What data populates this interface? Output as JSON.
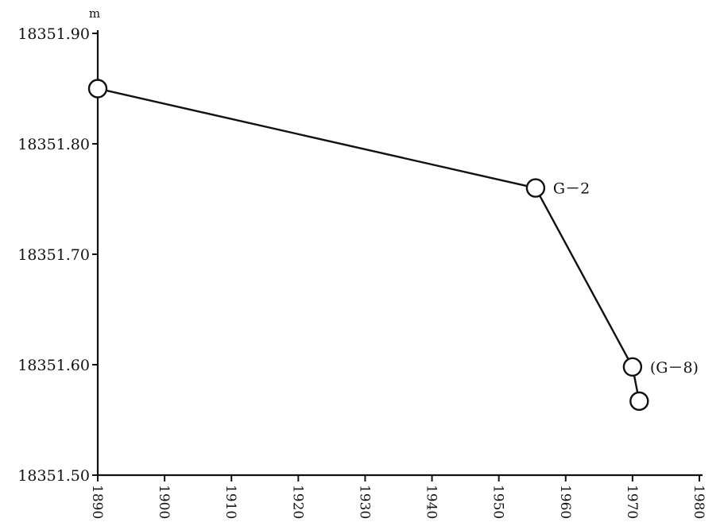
{
  "chart_data": {
    "type": "line",
    "title": "",
    "xlabel": "",
    "ylabel": "m",
    "xlim": [
      1890,
      1980
    ],
    "ylim": [
      18351.5,
      18351.9
    ],
    "x_ticks": [
      "1890",
      "1900",
      "1910",
      "1920",
      "1930",
      "1940",
      "1950",
      "1960",
      "1970",
      "1980"
    ],
    "y_ticks": [
      "18351.50",
      "18351.60",
      "18351.70",
      "18351.80",
      "18351.90"
    ],
    "grid": false,
    "legend": "none",
    "series": [
      {
        "x": [
          1890,
          1955.5,
          1970,
          1971
        ],
        "y": [
          18351.85,
          18351.76,
          18351.598,
          18351.567
        ]
      }
    ],
    "annotations": [
      {
        "text": "G－2",
        "x": 1955.5,
        "y": 18351.76
      },
      {
        "text": "(G－8)",
        "x": 1970,
        "y": 18351.598
      }
    ]
  }
}
